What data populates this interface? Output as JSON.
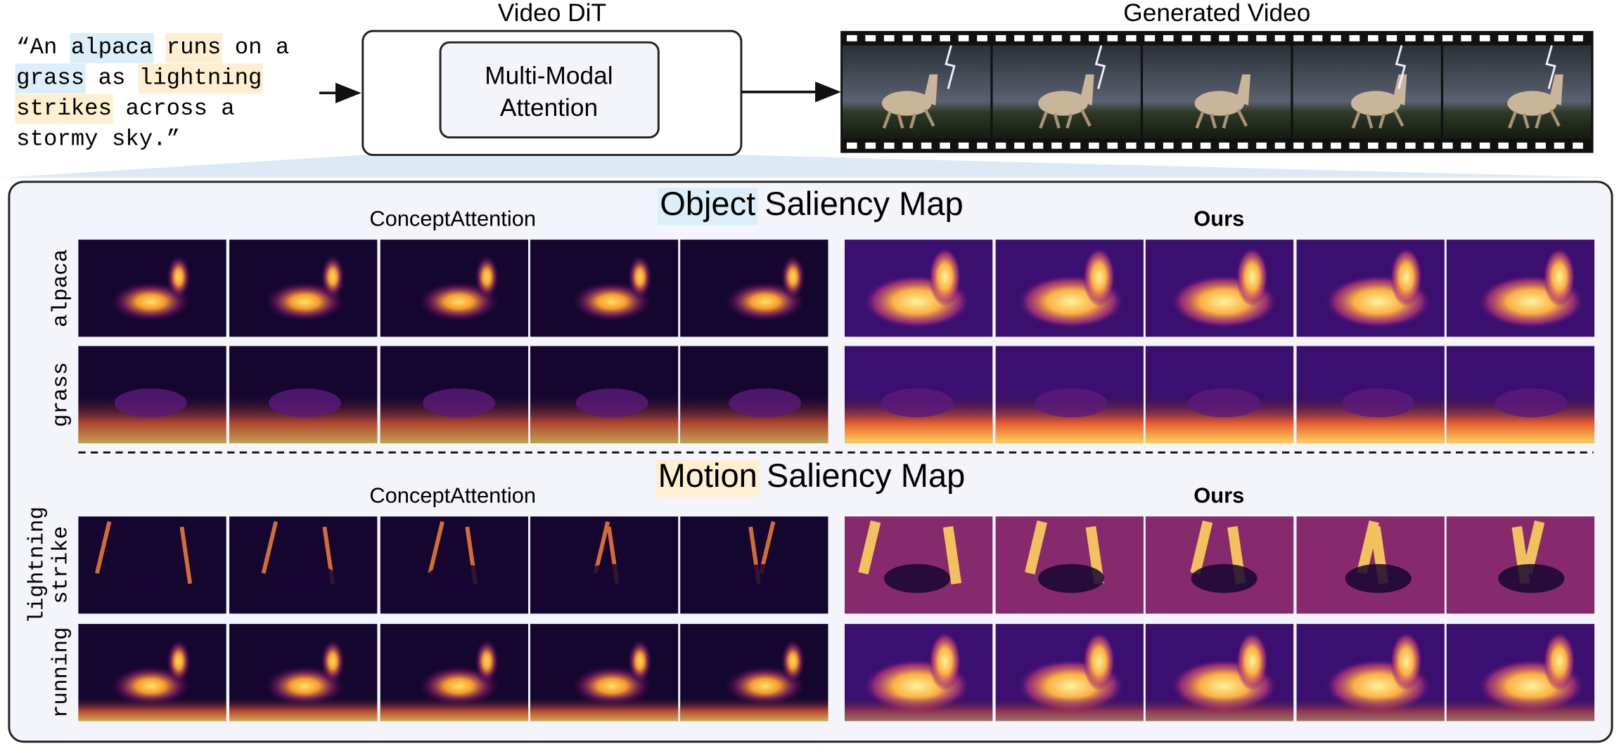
{
  "prompt": {
    "lines": [
      [
        {
          "text": "“An "
        },
        {
          "text": "alpaca",
          "color": "#dbeef9"
        },
        {
          "text": " "
        },
        {
          "text": "runs",
          "color": "#fdefd0"
        },
        {
          "text": " on a"
        }
      ],
      [
        {
          "text": "grass",
          "color": "#dbeef9"
        },
        {
          "text": " as "
        },
        {
          "text": "lightning",
          "color": "#fdefd0"
        }
      ],
      [
        {
          "text": "strikes",
          "color": "#fdefd0"
        },
        {
          "text": " across a"
        }
      ],
      [
        {
          "text": "stormy sky.”"
        }
      ]
    ]
  },
  "model": {
    "title": "Video DiT",
    "block": [
      "Multi-Modal",
      "Attention"
    ]
  },
  "output": {
    "title": "Generated Video"
  },
  "panels": [
    {
      "title_highlight": "Object",
      "title_rest": " Saliency Map",
      "highlight_color": "#dbeef9",
      "left_label": "ConceptAttention",
      "right_label": "Ours",
      "rows": [
        [
          "alpaca"
        ],
        [
          "grass"
        ]
      ]
    },
    {
      "title_highlight": "Motion",
      "title_rest": " Saliency Map",
      "highlight_color": "#fdefd0",
      "left_label": "ConceptAttention",
      "right_label": "Ours",
      "rows": [
        [
          "lightning",
          "strike"
        ],
        [
          "running"
        ]
      ]
    }
  ]
}
